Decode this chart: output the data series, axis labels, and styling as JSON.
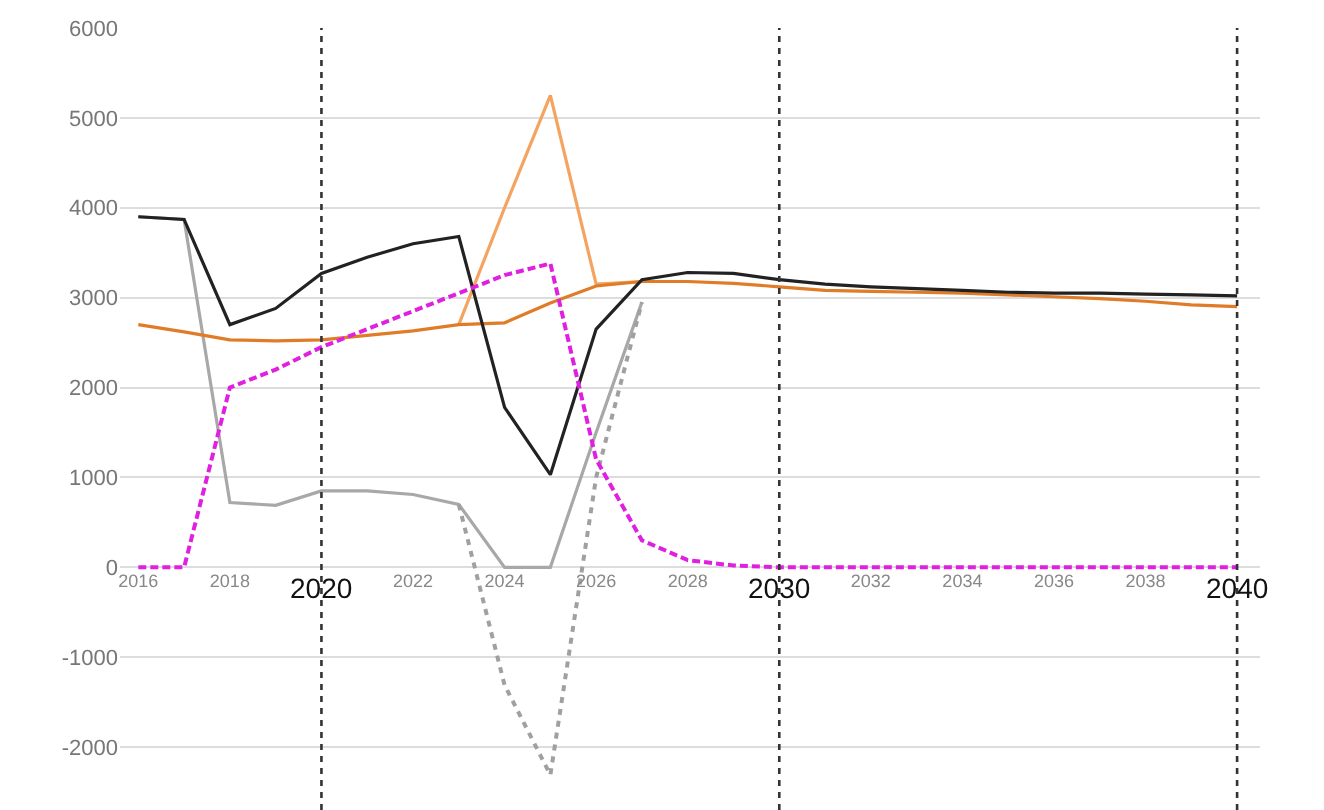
{
  "chart_data": {
    "type": "line",
    "x": [
      2016,
      2017,
      2018,
      2019,
      2020,
      2021,
      2022,
      2023,
      2024,
      2025,
      2026,
      2027,
      2028,
      2029,
      2030,
      2031,
      2032,
      2033,
      2034,
      2035,
      2036,
      2037,
      2038,
      2039,
      2040
    ],
    "series": [
      {
        "color": "#a8a8a8",
        "x": [
          2016,
          2017,
          2018,
          2019,
          2020,
          2021,
          2022,
          2023,
          2024,
          2025,
          2026,
          2027
        ],
        "values": [
          3900,
          3870,
          720,
          690,
          850,
          850,
          810,
          700,
          0,
          0,
          1500,
          2950
        ]
      },
      {
        "color": "#a0a0a0",
        "line_style": "dotted",
        "x": [
          2023,
          2024,
          2025,
          2026,
          2027
        ],
        "values": [
          700,
          -1310,
          -2310,
          1000,
          2950
        ]
      },
      {
        "color": "#f4a460",
        "x": [
          2023,
          2024,
          2025,
          2026,
          2027
        ],
        "values": [
          2700,
          4000,
          5250,
          3150,
          3180
        ]
      },
      {
        "color": "#e07b28",
        "values": [
          2700,
          2620,
          2530,
          2520,
          2530,
          2580,
          2630,
          2700,
          2720,
          2940,
          3130,
          3180,
          3180,
          3160,
          3120,
          3080,
          3070,
          3060,
          3050,
          3030,
          3010,
          2990,
          2960,
          2920,
          2900
        ]
      },
      {
        "color": "#222222",
        "values": [
          3900,
          3870,
          2700,
          2880,
          3270,
          3450,
          3600,
          3680,
          1780,
          1030,
          2650,
          3200,
          3280,
          3270,
          3200,
          3150,
          3120,
          3100,
          3080,
          3060,
          3050,
          3050,
          3040,
          3030,
          3020
        ]
      },
      {
        "color": "#e020e0",
        "line_style": "dashed",
        "values": [
          0,
          0,
          2000,
          2200,
          2450,
          2650,
          2850,
          3050,
          3250,
          3380,
          1200,
          300,
          80,
          20,
          0,
          0,
          0,
          0,
          0,
          0,
          0,
          0,
          0,
          0,
          0
        ]
      }
    ],
    "xlim": [
      2015.6,
      2040.5
    ],
    "xticks": [
      2016,
      2018,
      2022,
      2024,
      2026,
      2028,
      2032,
      2034,
      2036,
      2038
    ],
    "ylim": [
      -2700,
      6000
    ],
    "yticks": [
      -2000,
      -1000,
      0,
      1000,
      2000,
      3000,
      4000,
      5000,
      6000
    ],
    "grid": "y",
    "ref_lines": [
      {
        "axis": "x",
        "value": 2020,
        "label": "2020",
        "color": "#333333",
        "line_style": "dotted"
      },
      {
        "axis": "x",
        "value": 2030,
        "label": "2030",
        "color": "#333333",
        "line_style": "dotted"
      },
      {
        "axis": "x",
        "value": 2040,
        "label": "2040",
        "color": "#333333",
        "line_style": "dotted"
      }
    ]
  }
}
